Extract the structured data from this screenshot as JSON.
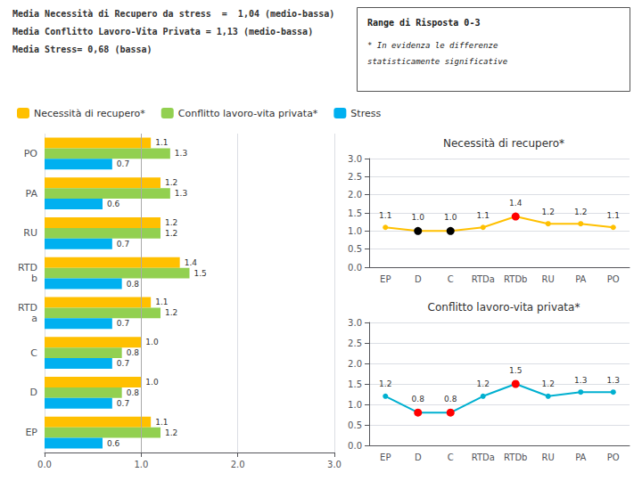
{
  "chart_data": [
    {
      "type": "bar",
      "orientation": "horizontal",
      "annotations": [
        "Media Necessità di Recupero da stress  =  1,04 (medio-bassa)",
        "Media Conflitto Lavoro-Vita Privata = 1,13 (medio-bassa)",
        "Media Stress= 0,68 (bassa)",
        "Range di Risposta 0-3",
        "* In evidenza le differenze",
        "statisticamente significative"
      ],
      "categories": [
        "PO",
        "PA",
        "RU",
        "RTD\nb",
        "RTD\na",
        "C",
        "D",
        "EP"
      ],
      "series": [
        {
          "name": "Necessità di recupero*",
          "color": "#FFC000",
          "values": [
            1.1,
            1.2,
            1.2,
            1.4,
            1.1,
            1.0,
            1.0,
            1.1
          ],
          "value_labels": [
            "1.1",
            "1.2",
            "1.2",
            "1.4",
            "1.1",
            "1.0",
            "1.0",
            "1.1"
          ]
        },
        {
          "name": "Conflitto lavoro-vita privata*",
          "color": "#92D050",
          "values": [
            1.3,
            1.3,
            1.2,
            1.5,
            1.2,
            0.8,
            0.8,
            1.2
          ],
          "value_labels": [
            "1.3",
            "1.3",
            "1.2",
            "1.5",
            "1.2",
            "0.8",
            "0.8",
            "1.2"
          ]
        },
        {
          "name": "Stress",
          "color": "#00B0F0",
          "values": [
            0.7,
            0.6,
            0.7,
            0.8,
            0.7,
            0.7,
            0.7,
            0.6
          ],
          "value_labels": [
            "0.7",
            "0.6",
            "0.7",
            "0.8",
            "0.7",
            "0.7",
            "0.7",
            "0.6"
          ]
        }
      ],
      "xlim": [
        0,
        3.0
      ],
      "xticks": [
        {
          "value": 0,
          "label": "0.0"
        },
        {
          "value": 1,
          "label": "1.0"
        },
        {
          "value": 2,
          "label": "2.0"
        },
        {
          "value": 3,
          "label": "3.0"
        }
      ],
      "reference_line": 1.0,
      "grid": true,
      "data_labels": true,
      "legend": "upper left"
    },
    {
      "type": "line",
      "title": "Necessità di recupero*",
      "categories": [
        "EP",
        "D",
        "C",
        "RTDa",
        "RTDb",
        "RU",
        "PA",
        "PO"
      ],
      "values": [
        1.1,
        1.0,
        1.0,
        1.1,
        1.4,
        1.2,
        1.2,
        1.1
      ],
      "value_labels": [
        "1.1",
        "1.0",
        "1.0",
        "1.1",
        "1.4",
        "1.2",
        "1.2",
        "1.1"
      ],
      "color": "#FFC000",
      "colors": [
        "#FFC000",
        "#000000",
        "#000000",
        "#FFC000",
        "#FF0000",
        "#FFC000",
        "#FFC000",
        "#FFC000"
      ],
      "marker": "circle",
      "ylim": [
        0.0,
        3.0
      ],
      "yticks": [
        {
          "value": 0,
          "label": "0.0"
        },
        0.5,
        {
          "value": 1,
          "label": "1.0"
        },
        1.5,
        {
          "value": 2,
          "label": "2.0"
        },
        2.5,
        {
          "value": 3,
          "label": "3.0"
        }
      ],
      "grid": true,
      "data_labels": true
    },
    {
      "type": "line",
      "title": "Conflitto lavoro-vita privata*",
      "categories": [
        "EP",
        "D",
        "C",
        "RTDa",
        "RTDb",
        "RU",
        "PA",
        "PO"
      ],
      "values": [
        1.2,
        0.8,
        0.8,
        1.2,
        1.5,
        1.2,
        1.3,
        1.3
      ],
      "value_labels": [
        "1.2",
        "0.8",
        "0.8",
        "1.2",
        "1.5",
        "1.2",
        "1.3",
        "1.3"
      ],
      "color": "#00B0D0",
      "colors": [
        "#00B0D0",
        "#FF0000",
        "#FF0000",
        "#00B0D0",
        "#FF0000",
        "#00B0D0",
        "#00B0D0",
        "#00B0D0"
      ],
      "marker": "circle",
      "ylim": [
        0.0,
        3.0
      ],
      "yticks": [
        {
          "value": 0,
          "label": "0.0"
        },
        0.5,
        {
          "value": 1,
          "label": "1.0"
        },
        1.5,
        {
          "value": 2,
          "label": "2.0"
        },
        2.5,
        {
          "value": 3,
          "label": "3.0"
        }
      ],
      "grid": true,
      "data_labels": true
    }
  ]
}
